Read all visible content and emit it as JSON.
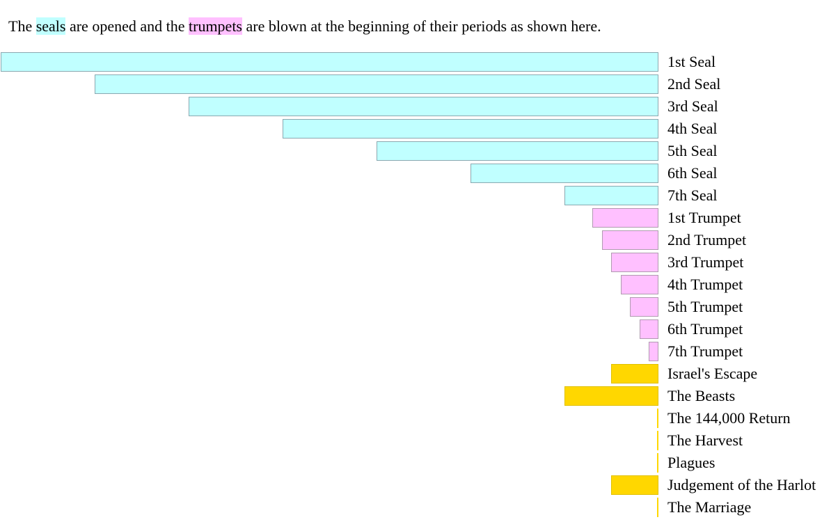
{
  "intro": {
    "prefix": "The ",
    "seal_word": "seals",
    "middle": " are opened and the ",
    "trumpet_word": "trumpets",
    "suffix": " are blown at the beginning of their periods as shown here."
  },
  "colors": {
    "seal": "#c0ffff",
    "trumpet": "#ffc0ff",
    "event": "#ffd700"
  },
  "chart_data": {
    "type": "bar",
    "orientation": "horizontal, bars extend leftward from a common right edge",
    "categories": [
      "1st Seal",
      "2nd Seal",
      "3rd Seal",
      "4th Seal",
      "5th Seal",
      "6th Seal",
      "7th Seal",
      "1st Trumpet",
      "2nd Trumpet",
      "3rd Trumpet",
      "4th Trumpet",
      "5th Trumpet",
      "6th Trumpet",
      "7th Trumpet",
      "Israel's Escape",
      "The Beasts",
      "The 144,000 Return",
      "The Harvest",
      "Plagues",
      "Judgement of the Harlot",
      "The Marriage"
    ],
    "groups": [
      "seal",
      "seal",
      "seal",
      "seal",
      "seal",
      "seal",
      "seal",
      "trumpet",
      "trumpet",
      "trumpet",
      "trumpet",
      "trumpet",
      "trumpet",
      "trumpet",
      "event",
      "event",
      "event",
      "event",
      "event",
      "event",
      "event"
    ],
    "values": [
      7,
      6,
      5,
      4,
      3,
      2,
      1,
      0.7,
      0.6,
      0.5,
      0.4,
      0.3,
      0.2,
      0.1,
      0.5,
      1,
      0,
      0,
      0,
      0.5,
      0
    ],
    "grid": false,
    "legend": "none"
  }
}
